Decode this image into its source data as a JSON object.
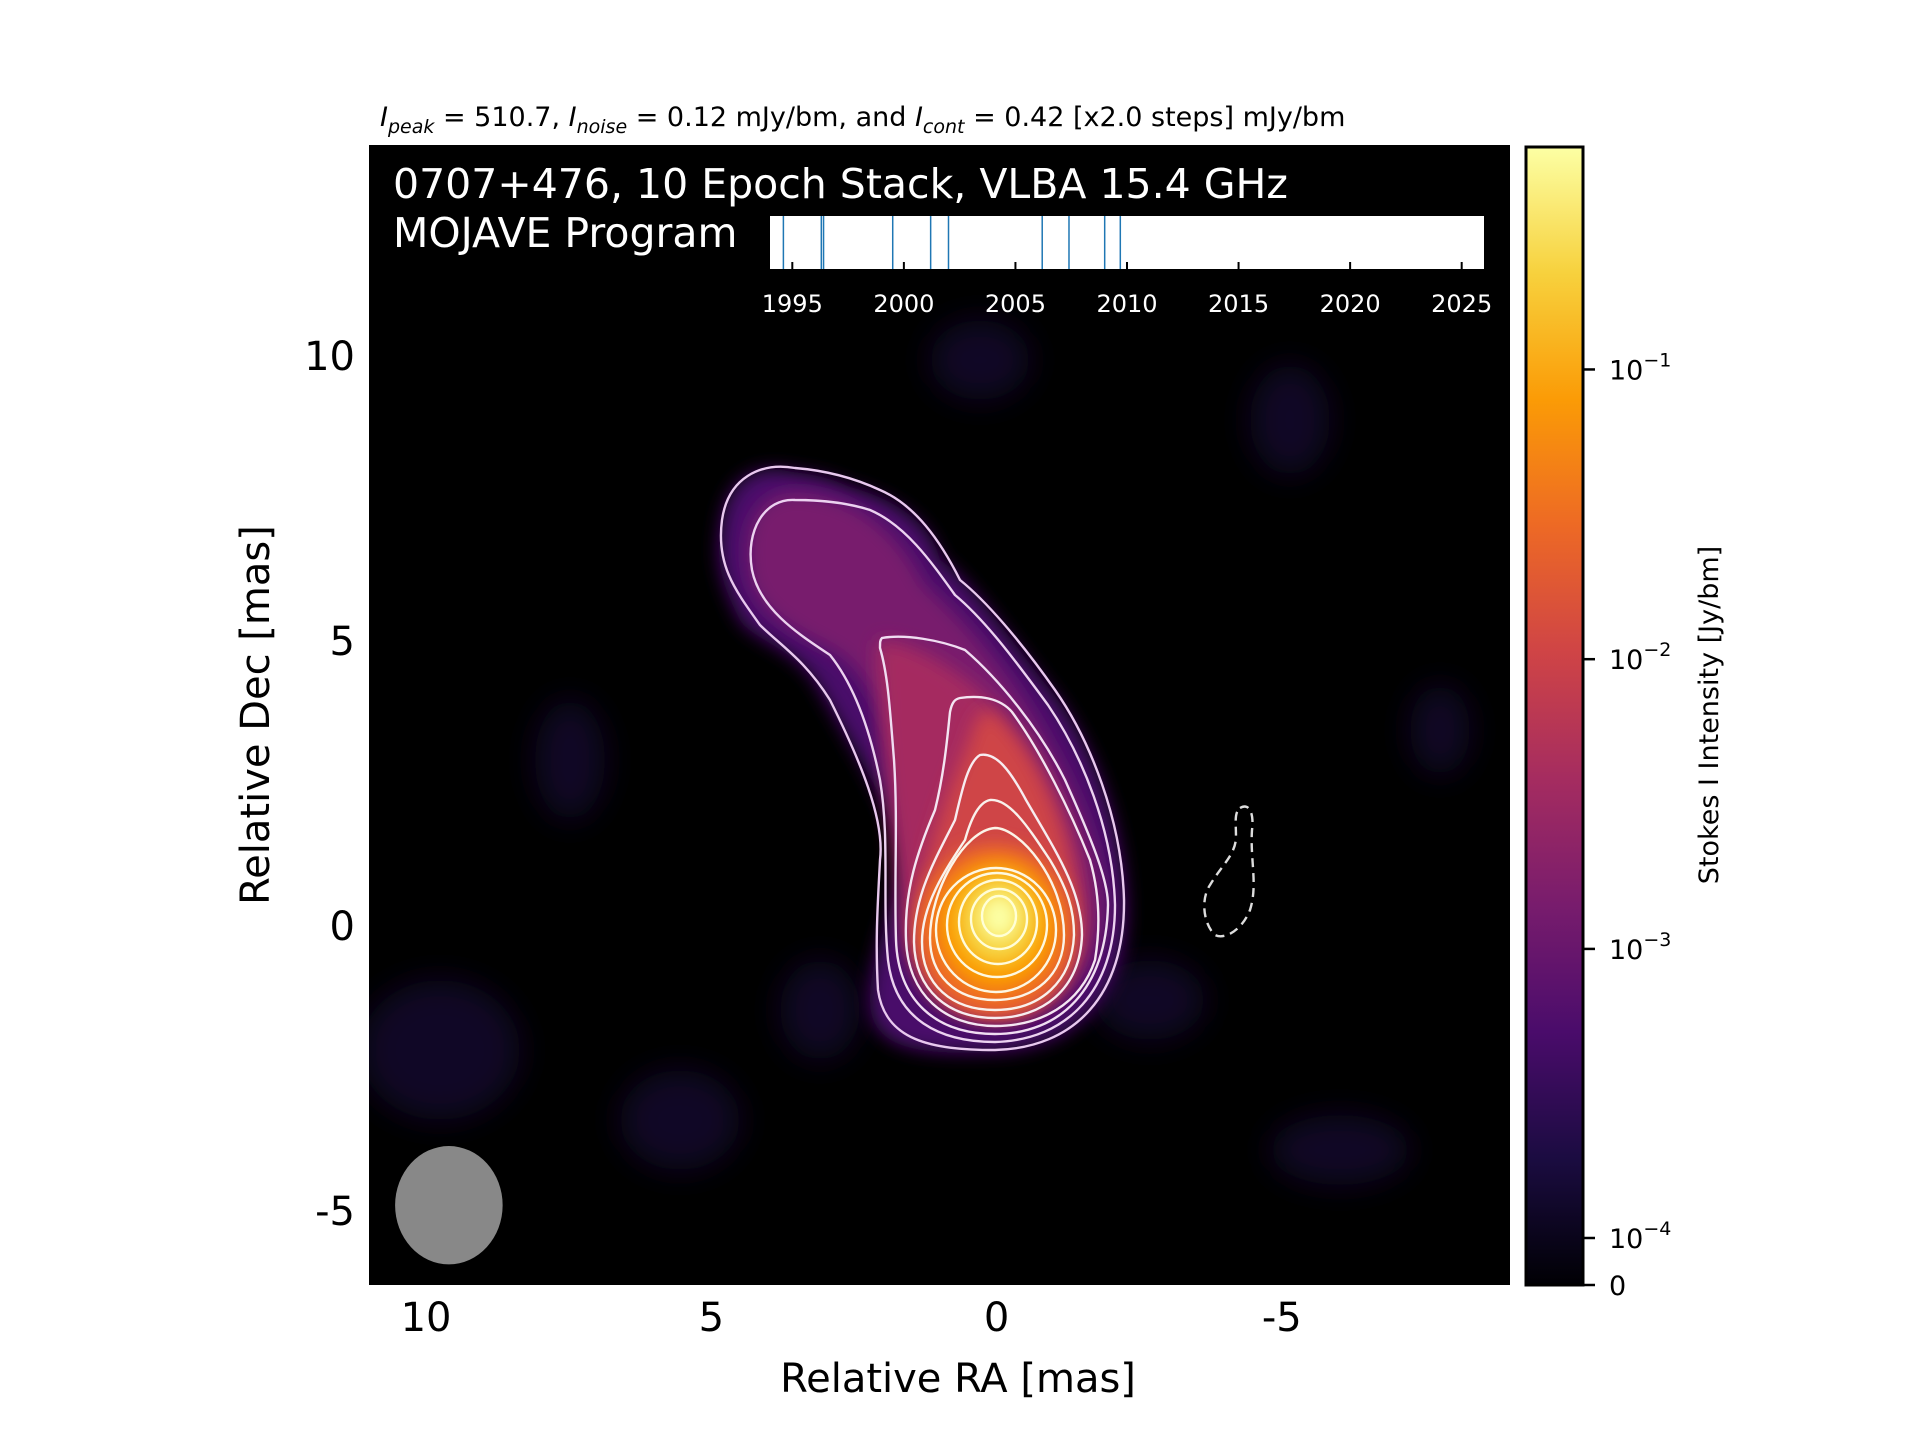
{
  "chart_data": {
    "type": "heatmap",
    "header": {
      "peak_sym": "I",
      "peak_sub": "peak",
      "peak_text": " = 510.7, ",
      "noise_sym": "I",
      "noise_sub": "noise",
      "noise_text": " = 0.12 mJy/bm, and ",
      "cont_sym": "I",
      "cont_sub": "cont",
      "cont_text": " = 0.42 [x2.0 steps] mJy/bm"
    },
    "title_line1": "0707+476, 10 Epoch Stack, VLBA 15.4 GHz",
    "title_line2": "MOJAVE Program",
    "xlabel": "Relative RA [mas]",
    "ylabel": "Relative Dec [mas]",
    "xlim": [
      11,
      -9
    ],
    "ylim": [
      -6.3,
      13.7
    ],
    "xticks": [
      10,
      5,
      0,
      -5
    ],
    "xtick_labels": [
      "10",
      "5",
      "0",
      "-5"
    ],
    "yticks": [
      10,
      5,
      0,
      -5
    ],
    "ytick_labels": [
      "10",
      "5",
      "0",
      "-5"
    ],
    "epochs": {
      "range": [
        1994,
        2026
      ],
      "tick_years": [
        1995,
        2000,
        2005,
        2010,
        2015,
        2020,
        2025
      ],
      "tick_labels": [
        "1995",
        "2000",
        "2005",
        "2010",
        "2015",
        "2020",
        "2025"
      ],
      "epoch_years": [
        1994.6,
        1996.3,
        1996.4,
        1999.5,
        2001.2,
        2002.0,
        2006.2,
        2007.4,
        2009.0,
        2009.7
      ]
    },
    "colorbar": {
      "label": "Stokes I Intensity [Jy/bm]",
      "scale": "log",
      "ticks": [
        {
          "value": 0.1,
          "base": "10",
          "exp": "−1"
        },
        {
          "value": 0.01,
          "base": "10",
          "exp": "−2"
        },
        {
          "value": 0.001,
          "base": "10",
          "exp": "−3"
        },
        {
          "value": 0.0001,
          "base": "10",
          "exp": "−4"
        },
        {
          "value": 0,
          "base": "0",
          "exp": ""
        }
      ],
      "colormap": "inferno",
      "colors": [
        "#000004",
        "#1b0c41",
        "#4a0c6b",
        "#781c6d",
        "#a52c60",
        "#cf4446",
        "#ed6925",
        "#fb9b06",
        "#f7d13d",
        "#fcffa4"
      ]
    },
    "beam": {
      "ra": 9.6,
      "dec": -4.9,
      "major": 1.43,
      "minor": 1.3,
      "color": "#888888"
    },
    "colors": {
      "background": "#000000",
      "contour": "#ffffff",
      "epoch_line": "#1f77b4"
    }
  }
}
